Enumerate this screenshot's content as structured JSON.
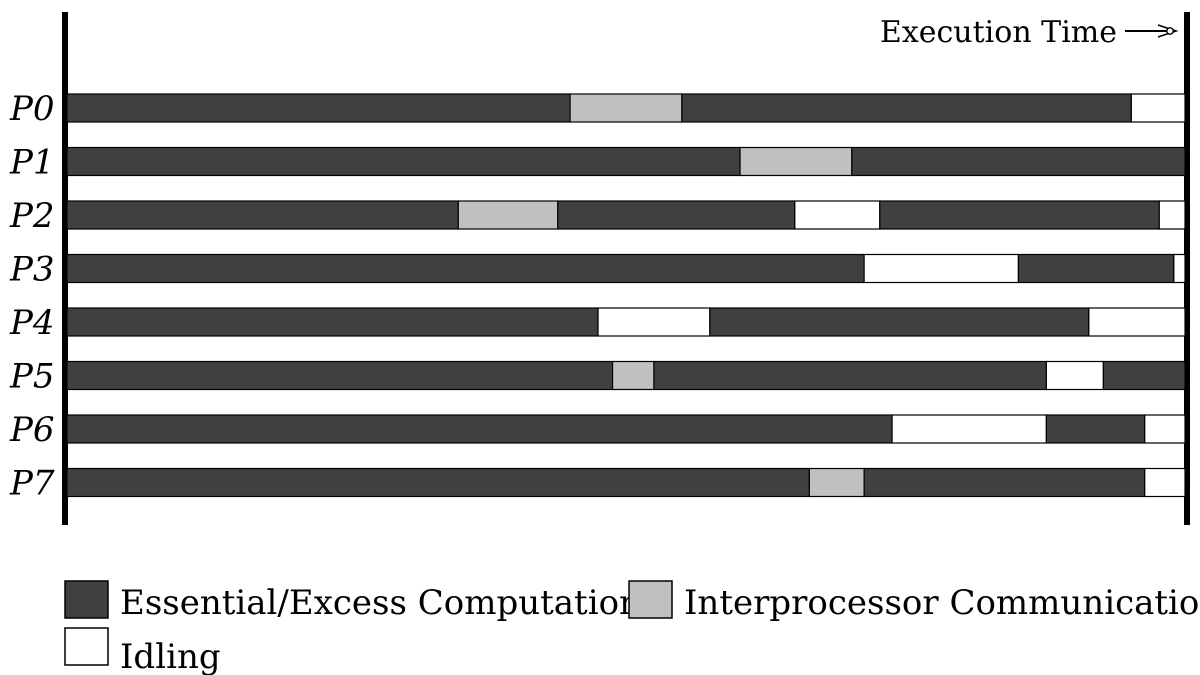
{
  "diagram": {
    "execution_time_label": "Execution Time",
    "time_total": 100,
    "colors": {
      "computation": "#404040",
      "communication": "#c0c0c0",
      "idle": "#ffffff",
      "axis": "#000000"
    },
    "processors": [
      {
        "label": "P0",
        "segments": [
          {
            "kind": "computation",
            "start": 0,
            "end": 45
          },
          {
            "kind": "communication",
            "start": 45,
            "end": 55
          },
          {
            "kind": "computation",
            "start": 55,
            "end": 95.2
          },
          {
            "kind": "idle",
            "start": 95.2,
            "end": 100
          }
        ]
      },
      {
        "label": "P1",
        "segments": [
          {
            "kind": "computation",
            "start": 0,
            "end": 60.2
          },
          {
            "kind": "communication",
            "start": 60.2,
            "end": 70.2
          },
          {
            "kind": "computation",
            "start": 70.2,
            "end": 100
          }
        ]
      },
      {
        "label": "P2",
        "segments": [
          {
            "kind": "computation",
            "start": 0,
            "end": 35
          },
          {
            "kind": "communication",
            "start": 35,
            "end": 43.9
          },
          {
            "kind": "computation",
            "start": 43.9,
            "end": 65.1
          },
          {
            "kind": "idle",
            "start": 65.1,
            "end": 72.7
          },
          {
            "kind": "computation",
            "start": 72.7,
            "end": 97.7
          },
          {
            "kind": "idle",
            "start": 97.7,
            "end": 100
          }
        ]
      },
      {
        "label": "P3",
        "segments": [
          {
            "kind": "computation",
            "start": 0,
            "end": 71.3
          },
          {
            "kind": "idle",
            "start": 71.3,
            "end": 85.1
          },
          {
            "kind": "computation",
            "start": 85.1,
            "end": 99.0
          },
          {
            "kind": "idle",
            "start": 99.0,
            "end": 100
          }
        ]
      },
      {
        "label": "P4",
        "segments": [
          {
            "kind": "computation",
            "start": 0,
            "end": 47.5
          },
          {
            "kind": "idle",
            "start": 47.5,
            "end": 57.5
          },
          {
            "kind": "computation",
            "start": 57.5,
            "end": 91.4
          },
          {
            "kind": "idle",
            "start": 91.4,
            "end": 100
          }
        ]
      },
      {
        "label": "P5",
        "segments": [
          {
            "kind": "computation",
            "start": 0,
            "end": 48.8
          },
          {
            "kind": "communication",
            "start": 48.8,
            "end": 52.5
          },
          {
            "kind": "computation",
            "start": 52.5,
            "end": 87.6
          },
          {
            "kind": "idle",
            "start": 87.6,
            "end": 92.7
          },
          {
            "kind": "computation",
            "start": 92.7,
            "end": 100
          }
        ]
      },
      {
        "label": "P6",
        "segments": [
          {
            "kind": "computation",
            "start": 0,
            "end": 73.8
          },
          {
            "kind": "idle",
            "start": 73.8,
            "end": 87.6
          },
          {
            "kind": "computation",
            "start": 87.6,
            "end": 96.4
          },
          {
            "kind": "idle",
            "start": 96.4,
            "end": 100
          }
        ]
      },
      {
        "label": "P7",
        "segments": [
          {
            "kind": "computation",
            "start": 0,
            "end": 66.4
          },
          {
            "kind": "communication",
            "start": 66.4,
            "end": 71.3
          },
          {
            "kind": "computation",
            "start": 71.3,
            "end": 96.4
          },
          {
            "kind": "idle",
            "start": 96.4,
            "end": 100
          }
        ]
      }
    ]
  },
  "legend": {
    "computation_label": "Essential/Excess Computation",
    "communication_label": "Interprocessor Communication",
    "idle_label": "Idling"
  }
}
